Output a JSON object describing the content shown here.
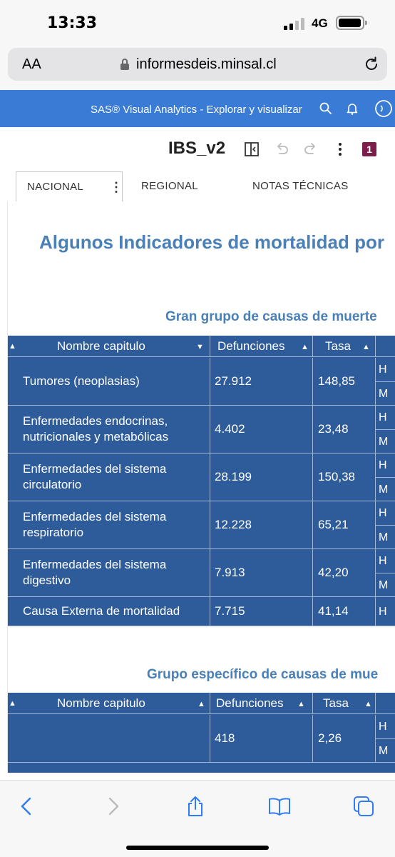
{
  "status_bar": {
    "time": "13:33",
    "network": "4G"
  },
  "browser": {
    "text_size_label": "AA",
    "domain": "informesdeis.minsal.cl"
  },
  "sas_header": {
    "title": "SAS® Visual Analytics - Explorar y visualizar"
  },
  "report": {
    "title": "IBS_v2",
    "badge_count": "1",
    "tabs": [
      {
        "label": "NACIONAL"
      },
      {
        "label": "REGIONAL"
      },
      {
        "label": "NOTAS TÉCNICAS"
      }
    ]
  },
  "page": {
    "title": "Algunos Indicadores de mortalidad por",
    "section1_title": "Gran grupo de causas de muerte",
    "section2_title": "Grupo específico de causas de mue"
  },
  "table1": {
    "headers": {
      "name": "Nombre capitulo",
      "deaths": "Defunciones",
      "rate": "Tasa"
    },
    "rows": [
      {
        "name": "Tumores (neoplasias)",
        "deaths": "27.912",
        "rate": "148,85",
        "sex": [
          "H",
          "M"
        ]
      },
      {
        "name": "Enfermedades endocrinas, nutricionales y metabólicas",
        "deaths": "4.402",
        "rate": "23,48",
        "sex": [
          "H",
          "M"
        ]
      },
      {
        "name": "Enfermedades del sistema circulatorio",
        "deaths": "28.199",
        "rate": "150,38",
        "sex": [
          "H",
          "M"
        ]
      },
      {
        "name": "Enfermedades del sistema respiratorio",
        "deaths": "12.228",
        "rate": "65,21",
        "sex": [
          "H",
          "M"
        ]
      },
      {
        "name": "Enfermedades del sistema digestivo",
        "deaths": "7.913",
        "rate": "42,20",
        "sex": [
          "H",
          "M"
        ]
      },
      {
        "name": "Causa Externa de mortalidad",
        "deaths": "7.715",
        "rate": "41,14",
        "sex": [
          "H"
        ]
      }
    ]
  },
  "table2": {
    "headers": {
      "name": "Nombre capitulo",
      "deaths": "Defunciones",
      "rate": "Tasa"
    },
    "rows": [
      {
        "name": "",
        "deaths": "418",
        "rate": "2,26",
        "sex": [
          "H",
          "M"
        ]
      }
    ]
  },
  "colors": {
    "sas_blue": "#3a7bd5",
    "table_blue": "#2e5b99",
    "title_blue": "#4a80b8",
    "badge": "#7b1f4a"
  }
}
